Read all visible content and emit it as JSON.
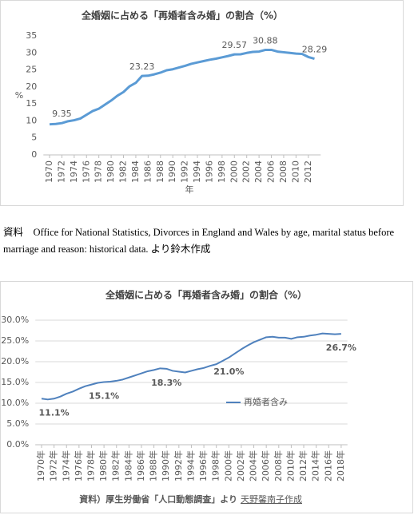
{
  "chart_data": [
    {
      "type": "line",
      "title": "全婚姻に占める「再婚者含み婚」の割合（%）",
      "y_label": "%",
      "x_label": "年",
      "x": [
        1970,
        1971,
        1972,
        1973,
        1974,
        1975,
        1976,
        1977,
        1978,
        1979,
        1980,
        1981,
        1982,
        1983,
        1984,
        1985,
        1986,
        1987,
        1988,
        1989,
        1990,
        1991,
        1992,
        1993,
        1994,
        1995,
        1996,
        1997,
        1998,
        1999,
        2000,
        2001,
        2002,
        2003,
        2004,
        2005,
        2006,
        2007,
        2008,
        2009,
        2010,
        2011,
        2012,
        2013
      ],
      "series": [
        {
          "color": "#5b9bd5",
          "values": [
            9.0,
            9.1,
            9.35,
            9.9,
            10.2,
            10.7,
            11.8,
            12.9,
            13.6,
            14.8,
            16.0,
            17.4,
            18.5,
            20.2,
            21.2,
            23.23,
            23.3,
            23.7,
            24.2,
            24.9,
            25.2,
            25.7,
            26.2,
            26.8,
            27.2,
            27.6,
            28.0,
            28.3,
            28.7,
            29.1,
            29.57,
            29.6,
            30.0,
            30.3,
            30.4,
            30.88,
            30.9,
            30.4,
            30.2,
            30.0,
            29.8,
            29.7,
            28.8,
            28.29
          ],
          "value_labels": [
            null,
            null,
            "9.35",
            null,
            null,
            null,
            null,
            null,
            null,
            null,
            null,
            null,
            null,
            null,
            null,
            "23.23",
            null,
            null,
            null,
            null,
            null,
            null,
            null,
            null,
            null,
            null,
            null,
            null,
            null,
            null,
            "29.57",
            null,
            null,
            null,
            null,
            "30.88",
            null,
            null,
            null,
            null,
            null,
            null,
            null,
            "28.29"
          ]
        }
      ],
      "xlim": [
        1969,
        2014
      ],
      "xticks": [
        1970,
        1972,
        1974,
        1976,
        1978,
        1980,
        1982,
        1984,
        1986,
        1988,
        1990,
        1992,
        1994,
        1996,
        1998,
        2000,
        2002,
        2004,
        2006,
        2008,
        2010,
        2012
      ],
      "ylim": [
        0,
        35
      ],
      "yticks": [
        0,
        5,
        10,
        15,
        20,
        25,
        30,
        35
      ],
      "grid": false
    },
    {
      "type": "line",
      "title": "全婚姻に占める「再婚者含み婚」の割合（%）",
      "legend": "right",
      "x": [
        1970,
        1971,
        1972,
        1973,
        1974,
        1975,
        1976,
        1977,
        1978,
        1979,
        1980,
        1981,
        1982,
        1983,
        1984,
        1985,
        1986,
        1987,
        1988,
        1989,
        1990,
        1991,
        1992,
        1993,
        1994,
        1995,
        1996,
        1997,
        1998,
        1999,
        2000,
        2001,
        2002,
        2003,
        2004,
        2005,
        2006,
        2007,
        2008,
        2009,
        2010,
        2011,
        2012,
        2013,
        2014,
        2015,
        2016,
        2017,
        2018
      ],
      "series": [
        {
          "name": "再婚者含み",
          "color": "#4f81bd",
          "values": [
            11.1,
            10.9,
            11.1,
            11.6,
            12.3,
            12.8,
            13.5,
            14.1,
            14.5,
            14.9,
            15.1,
            15.2,
            15.4,
            15.7,
            16.2,
            16.7,
            17.2,
            17.7,
            18.0,
            18.4,
            18.3,
            17.8,
            17.6,
            17.4,
            17.8,
            18.2,
            18.5,
            19.0,
            19.4,
            20.2,
            21.0,
            22.0,
            23.0,
            23.9,
            24.7,
            25.3,
            25.9,
            26.0,
            25.8,
            25.8,
            25.5,
            25.9,
            26.0,
            26.3,
            26.5,
            26.8,
            26.7,
            26.6,
            26.7
          ],
          "value_labels": [
            null,
            null,
            "11.1%",
            null,
            null,
            null,
            null,
            null,
            null,
            null,
            "15.1%",
            null,
            null,
            null,
            null,
            null,
            null,
            null,
            null,
            null,
            "18.3%",
            null,
            null,
            null,
            null,
            null,
            null,
            null,
            null,
            null,
            "21.0%",
            null,
            null,
            null,
            null,
            null,
            null,
            null,
            null,
            null,
            null,
            null,
            null,
            null,
            null,
            null,
            null,
            null,
            "26.7%"
          ]
        }
      ],
      "xlim": [
        1969,
        2019
      ],
      "xticks": [
        {
          "value": 1970,
          "label": "1970年"
        },
        {
          "value": 1972,
          "label": "1972年"
        },
        {
          "value": 1974,
          "label": "1974年"
        },
        {
          "value": 1976,
          "label": "1976年"
        },
        {
          "value": 1978,
          "label": "1978年"
        },
        {
          "value": 1980,
          "label": "1980年"
        },
        {
          "value": 1982,
          "label": "1982年"
        },
        {
          "value": 1984,
          "label": "1984年"
        },
        {
          "value": 1986,
          "label": "1986年"
        },
        {
          "value": 1988,
          "label": "1988年"
        },
        {
          "value": 1990,
          "label": "1990年"
        },
        {
          "value": 1992,
          "label": "1992年"
        },
        {
          "value": 1994,
          "label": "1994年"
        },
        {
          "value": 1996,
          "label": "1996年"
        },
        {
          "value": 1998,
          "label": "1998年"
        },
        {
          "value": 2000,
          "label": "2000年"
        },
        {
          "value": 2002,
          "label": "2002年"
        },
        {
          "value": 2004,
          "label": "2004年"
        },
        {
          "value": 2006,
          "label": "2006年"
        },
        {
          "value": 2008,
          "label": "2008年"
        },
        {
          "value": 2010,
          "label": "2010年"
        },
        {
          "value": 2012,
          "label": "2012年"
        },
        {
          "value": 2014,
          "label": "2014年"
        },
        {
          "value": 2016,
          "label": "2016年"
        },
        {
          "value": 2018,
          "label": "2018年"
        }
      ],
      "ylim": [
        0,
        30
      ],
      "yticks": [
        {
          "value": 0,
          "label": "0.0%"
        },
        {
          "value": 5,
          "label": "5.0%"
        },
        {
          "value": 10,
          "label": "10.0%"
        },
        {
          "value": 15,
          "label": "15.0%"
        },
        {
          "value": 20,
          "label": "20.0%"
        },
        {
          "value": 25,
          "label": "25.0%"
        },
        {
          "value": 30,
          "label": "30.0%"
        }
      ],
      "grid": true,
      "source": "資料）厚生労働省「人口動態調査」より",
      "credit": "天野馨南子作成"
    }
  ],
  "caption": "資料　Office for National Statistics, Divorces in England and Wales by age, marital status before marriage and reason: historical data. より鈴木作成"
}
